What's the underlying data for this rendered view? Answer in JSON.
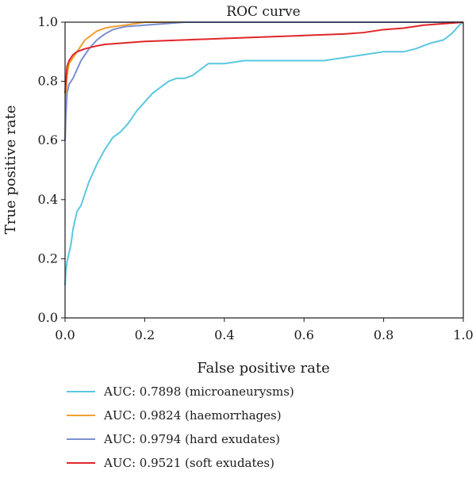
{
  "chart_data": {
    "type": "line",
    "title": "ROC curve",
    "xlabel": "False positive rate",
    "ylabel": "True positive rate",
    "xlim": [
      0,
      1
    ],
    "ylim": [
      0,
      1
    ],
    "xticks": [
      0.0,
      0.2,
      0.4,
      0.6,
      0.8,
      1.0
    ],
    "yticks": [
      0.0,
      0.2,
      0.4,
      0.6,
      0.8,
      1.0
    ],
    "xtick_labels": [
      "0.0",
      "0.2",
      "0.4",
      "0.6",
      "0.8",
      "1.0"
    ],
    "ytick_labels": [
      "0.0",
      "0.2",
      "0.4",
      "0.6",
      "0.8",
      "1.0"
    ],
    "grid": false,
    "legend_position": "below",
    "series": [
      {
        "name": "AUC: 0.7898 (microaneurysms)",
        "color": "#5bc8df",
        "x": [
          0.0,
          0.002,
          0.005,
          0.01,
          0.015,
          0.02,
          0.025,
          0.03,
          0.04,
          0.05,
          0.06,
          0.07,
          0.08,
          0.1,
          0.12,
          0.14,
          0.16,
          0.18,
          0.2,
          0.22,
          0.24,
          0.26,
          0.28,
          0.3,
          0.32,
          0.34,
          0.36,
          0.38,
          0.4,
          0.45,
          0.5,
          0.55,
          0.6,
          0.65,
          0.7,
          0.75,
          0.8,
          0.85,
          0.88,
          0.9,
          0.92,
          0.95,
          0.97,
          0.99,
          1.0
        ],
        "y": [
          0.11,
          0.16,
          0.19,
          0.22,
          0.25,
          0.3,
          0.33,
          0.36,
          0.38,
          0.42,
          0.46,
          0.49,
          0.52,
          0.57,
          0.61,
          0.63,
          0.66,
          0.7,
          0.73,
          0.76,
          0.78,
          0.8,
          0.81,
          0.81,
          0.82,
          0.84,
          0.86,
          0.86,
          0.86,
          0.87,
          0.87,
          0.87,
          0.87,
          0.87,
          0.88,
          0.89,
          0.9,
          0.9,
          0.91,
          0.92,
          0.93,
          0.94,
          0.96,
          0.99,
          1.0
        ]
      },
      {
        "name": "AUC: 0.9824 (haemorrhages)",
        "color": "#f0a030",
        "x": [
          0.0,
          0.002,
          0.005,
          0.01,
          0.02,
          0.03,
          0.04,
          0.05,
          0.06,
          0.08,
          0.1,
          0.12,
          0.15,
          0.2,
          0.3,
          0.4,
          0.6,
          0.8,
          1.0
        ],
        "y": [
          0.6,
          0.75,
          0.82,
          0.86,
          0.88,
          0.9,
          0.92,
          0.94,
          0.95,
          0.97,
          0.98,
          0.985,
          0.99,
          1.0,
          1.0,
          1.0,
          1.0,
          1.0,
          1.0
        ]
      },
      {
        "name": "AUC: 0.9794 (hard exudates)",
        "color": "#7b8fd0",
        "x": [
          0.0,
          0.002,
          0.005,
          0.01,
          0.015,
          0.02,
          0.03,
          0.04,
          0.05,
          0.06,
          0.08,
          0.1,
          0.12,
          0.15,
          0.2,
          0.25,
          0.3,
          0.35,
          0.4,
          0.6,
          0.8,
          1.0
        ],
        "y": [
          0.6,
          0.68,
          0.76,
          0.79,
          0.8,
          0.81,
          0.84,
          0.87,
          0.89,
          0.91,
          0.94,
          0.96,
          0.975,
          0.985,
          0.99,
          0.995,
          1.0,
          1.0,
          1.0,
          1.0,
          1.0,
          1.0
        ]
      },
      {
        "name": "AUC: 0.9521 (soft exudates)",
        "color": "#e0262a",
        "x": [
          0.0,
          0.002,
          0.005,
          0.01,
          0.015,
          0.02,
          0.03,
          0.05,
          0.08,
          0.1,
          0.15,
          0.2,
          0.3,
          0.4,
          0.5,
          0.6,
          0.7,
          0.75,
          0.8,
          0.85,
          0.9,
          0.95,
          1.0
        ],
        "y": [
          0.76,
          0.8,
          0.85,
          0.87,
          0.88,
          0.89,
          0.9,
          0.91,
          0.92,
          0.925,
          0.93,
          0.935,
          0.94,
          0.945,
          0.95,
          0.955,
          0.96,
          0.965,
          0.975,
          0.98,
          0.99,
          0.995,
          1.0
        ]
      }
    ]
  }
}
